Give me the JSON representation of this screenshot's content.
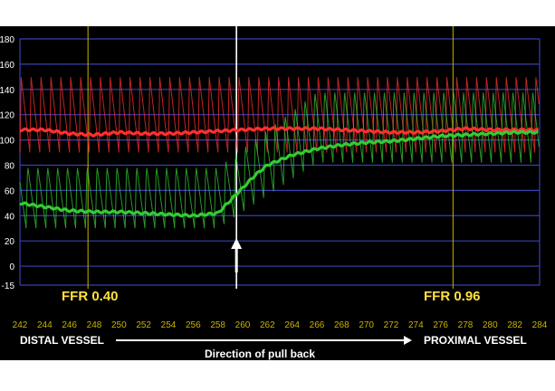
{
  "chart_data": {
    "type": "line",
    "x_ticks": [
      242,
      244,
      246,
      248,
      250,
      252,
      254,
      256,
      258,
      260,
      262,
      264,
      266,
      268,
      270,
      272,
      274,
      276,
      278,
      280,
      282,
      284
    ],
    "y_ticks": [
      -15,
      0,
      20,
      40,
      60,
      80,
      100,
      120,
      140,
      160,
      180
    ],
    "xlim": [
      242,
      284
    ],
    "ylim": [
      -15,
      180
    ],
    "grid": true,
    "series": [
      {
        "color": "#ff3030",
        "mean": [
          [
            242,
            108
          ],
          [
            244,
            108
          ],
          [
            246,
            105
          ],
          [
            248,
            104
          ],
          [
            250,
            106
          ],
          [
            252,
            105
          ],
          [
            254,
            105
          ],
          [
            256,
            106
          ],
          [
            258,
            107
          ],
          [
            260,
            108
          ],
          [
            262,
            109
          ],
          [
            264,
            109
          ],
          [
            266,
            109
          ],
          [
            268,
            108
          ],
          [
            270,
            107
          ],
          [
            272,
            106
          ],
          [
            274,
            106
          ],
          [
            276,
            107
          ],
          [
            278,
            109
          ],
          [
            280,
            108
          ],
          [
            282,
            108
          ],
          [
            284,
            108
          ]
        ],
        "phasic_low": 90,
        "phasic_high": 150
      },
      {
        "color": "#33cc33",
        "mean": [
          [
            242,
            50
          ],
          [
            244,
            47
          ],
          [
            246,
            44
          ],
          [
            248,
            43
          ],
          [
            250,
            43
          ],
          [
            252,
            42
          ],
          [
            254,
            41
          ],
          [
            256,
            40
          ],
          [
            258,
            42
          ],
          [
            259,
            52
          ],
          [
            260,
            62
          ],
          [
            261,
            72
          ],
          [
            262,
            80
          ],
          [
            264,
            88
          ],
          [
            266,
            93
          ],
          [
            268,
            96
          ],
          [
            270,
            98
          ],
          [
            272,
            99
          ],
          [
            274,
            101
          ],
          [
            276,
            103
          ],
          [
            278,
            104
          ],
          [
            280,
            105
          ],
          [
            282,
            106
          ],
          [
            284,
            106
          ]
        ],
        "phasic_low_start": 30,
        "phasic_high_start": 80,
        "phasic_low_end": 82,
        "phasic_high_end": 140
      }
    ],
    "vertical_markers": [
      {
        "x": 247.5,
        "color": "#c8b400"
      },
      {
        "x": 259.5,
        "color": "#ffffff"
      },
      {
        "x": 277,
        "color": "#c8b400"
      }
    ],
    "arrow_up_x": 259.5,
    "annotations": {
      "ffr_left": "FFR 0.40",
      "ffr_right": "FFR 0.96"
    }
  },
  "labels": {
    "distal": "DISTAL VESSEL",
    "proximal": "PROXIMAL VESSEL",
    "direction": "Direction of pull back"
  },
  "colors": {
    "background": "#000000",
    "grid": "#3a3fb0",
    "axis_text": "#c8b400",
    "ffr_text": "#ffe23a"
  }
}
